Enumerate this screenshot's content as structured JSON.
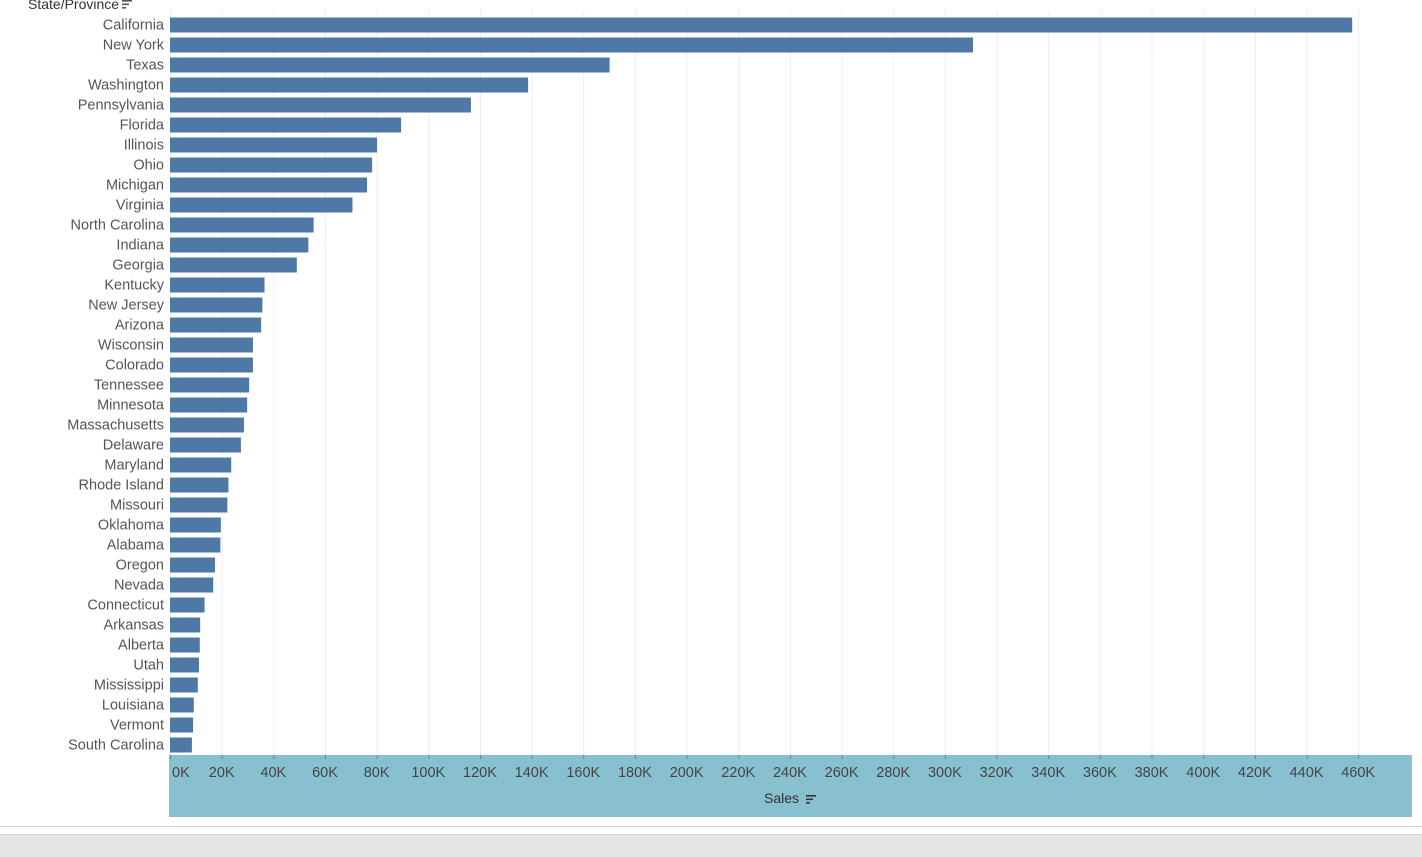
{
  "chart_data": {
    "type": "bar",
    "orientation": "horizontal",
    "dimension_label": "State/Province",
    "measure_label": "Sales",
    "categories": [
      "California",
      "New York",
      "Texas",
      "Washington",
      "Pennsylvania",
      "Florida",
      "Illinois",
      "Ohio",
      "Michigan",
      "Virginia",
      "North Carolina",
      "Indiana",
      "Georgia",
      "Kentucky",
      "New Jersey",
      "Arizona",
      "Wisconsin",
      "Colorado",
      "Tennessee",
      "Minnesota",
      "Massachusetts",
      "Delaware",
      "Maryland",
      "Rhode Island",
      "Missouri",
      "Oklahoma",
      "Alabama",
      "Oregon",
      "Nevada",
      "Connecticut",
      "Arkansas",
      "Alberta",
      "Utah",
      "Mississippi",
      "Louisiana",
      "Vermont",
      "South Carolina"
    ],
    "values": [
      457688,
      310876,
      170188,
      138641,
      116512,
      89474,
      80166,
      78258,
      76270,
      70637,
      55603,
      53555,
      49096,
      36592,
      35764,
      35282,
      32115,
      32108,
      30662,
      29863,
      28634,
      27451,
      23706,
      22628,
      22205,
      19683,
      19511,
      17431,
      16729,
      13385,
      11678,
      11529,
      11220,
      10771,
      9217,
      8929,
      8482
    ],
    "xlim": [
      0,
      480000
    ],
    "ticks": [
      0,
      20000,
      40000,
      60000,
      80000,
      100000,
      120000,
      140000,
      160000,
      180000,
      200000,
      220000,
      240000,
      260000,
      280000,
      300000,
      320000,
      340000,
      360000,
      380000,
      400000,
      420000,
      440000,
      460000
    ],
    "tick_labels": [
      "0K",
      "20K",
      "40K",
      "60K",
      "80K",
      "100K",
      "120K",
      "140K",
      "160K",
      "180K",
      "200K",
      "220K",
      "240K",
      "260K",
      "280K",
      "300K",
      "320K",
      "340K",
      "360K",
      "380K",
      "400K",
      "420K",
      "440K",
      "460K"
    ],
    "grid": true,
    "colors": {
      "bar": "#4e79a7",
      "axis_band": "#89c0d0",
      "grid": "#eeeeee",
      "label": "#555555"
    }
  }
}
